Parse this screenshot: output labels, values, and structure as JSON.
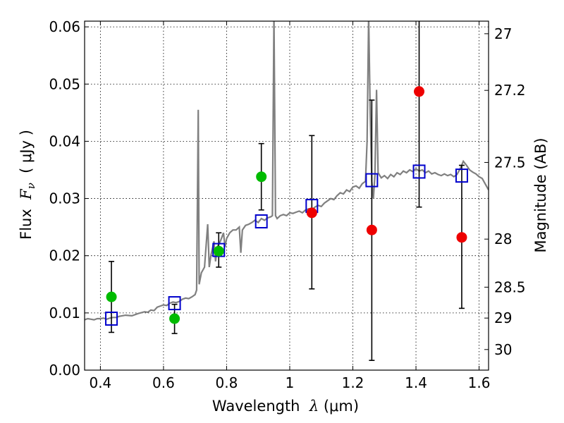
{
  "chart_data": {
    "type": "scatter",
    "xlabel": {
      "prefix": "Wavelength  ",
      "symbol": "λ",
      "suffix": " (μm)"
    },
    "ylabel": {
      "prefix": "Flux  ",
      "symbol": "F",
      "subscript": "ν",
      "suffix": "  ( μJy )"
    },
    "y2label": "Magnitude (AB)",
    "xlim": [
      0.35,
      1.63
    ],
    "ylim": [
      0.0,
      0.061
    ],
    "xticks": [
      {
        "value": 0.4,
        "label": "0.4"
      },
      {
        "value": 0.6,
        "label": "0.6"
      },
      {
        "value": 0.8,
        "label": "0.8"
      },
      {
        "value": 1.0,
        "label": "1"
      },
      {
        "value": 1.2,
        "label": "1.2"
      },
      {
        "value": 1.4,
        "label": "1.4"
      },
      {
        "value": 1.6,
        "label": "1.6"
      }
    ],
    "yticks": [
      {
        "value": 0.0,
        "label": "0.00"
      },
      {
        "value": 0.01,
        "label": "0.01"
      },
      {
        "value": 0.02,
        "label": "0.02"
      },
      {
        "value": 0.03,
        "label": "0.03"
      },
      {
        "value": 0.04,
        "label": "0.04"
      },
      {
        "value": 0.05,
        "label": "0.05"
      },
      {
        "value": 0.06,
        "label": "0.06"
      }
    ],
    "y2ticks": [
      {
        "flux": 0.0588,
        "label": "27"
      },
      {
        "flux": 0.0489,
        "label": "27.2"
      },
      {
        "flux": 0.0363,
        "label": "27.5"
      },
      {
        "flux": 0.0229,
        "label": "28"
      },
      {
        "flux": 0.0145,
        "label": "28.5"
      },
      {
        "flux": 0.0091,
        "label": "29"
      },
      {
        "flux": 0.0036,
        "label": "30"
      }
    ],
    "grid": true,
    "template_color": "#808080",
    "template": [
      [
        0.35,
        0.0088
      ],
      [
        0.36,
        0.009
      ],
      [
        0.37,
        0.0089
      ],
      [
        0.38,
        0.0088
      ],
      [
        0.39,
        0.009
      ],
      [
        0.4,
        0.009
      ],
      [
        0.41,
        0.0091
      ],
      [
        0.42,
        0.0089
      ],
      [
        0.43,
        0.0091
      ],
      [
        0.44,
        0.0092
      ],
      [
        0.45,
        0.0092
      ],
      [
        0.46,
        0.0094
      ],
      [
        0.48,
        0.0096
      ],
      [
        0.5,
        0.0095
      ],
      [
        0.52,
        0.0099
      ],
      [
        0.54,
        0.0102
      ],
      [
        0.55,
        0.0101
      ],
      [
        0.56,
        0.0105
      ],
      [
        0.57,
        0.0104
      ],
      [
        0.58,
        0.011
      ],
      [
        0.59,
        0.0112
      ],
      [
        0.6,
        0.0114
      ],
      [
        0.61,
        0.0113
      ],
      [
        0.62,
        0.0117
      ],
      [
        0.63,
        0.0119
      ],
      [
        0.64,
        0.0118
      ],
      [
        0.65,
        0.012
      ],
      [
        0.66,
        0.0124
      ],
      [
        0.67,
        0.0126
      ],
      [
        0.68,
        0.0125
      ],
      [
        0.69,
        0.0128
      ],
      [
        0.7,
        0.0132
      ],
      [
        0.705,
        0.014
      ],
      [
        0.71,
        0.0455
      ],
      [
        0.713,
        0.015
      ],
      [
        0.72,
        0.017
      ],
      [
        0.73,
        0.018
      ],
      [
        0.74,
        0.0255
      ],
      [
        0.745,
        0.018
      ],
      [
        0.75,
        0.02
      ],
      [
        0.76,
        0.0225
      ],
      [
        0.765,
        0.019
      ],
      [
        0.77,
        0.0215
      ],
      [
        0.78,
        0.0225
      ],
      [
        0.79,
        0.024
      ],
      [
        0.795,
        0.0215
      ],
      [
        0.8,
        0.023
      ],
      [
        0.81,
        0.024
      ],
      [
        0.82,
        0.0245
      ],
      [
        0.83,
        0.0245
      ],
      [
        0.84,
        0.025
      ],
      [
        0.845,
        0.0205
      ],
      [
        0.85,
        0.0245
      ],
      [
        0.86,
        0.0253
      ],
      [
        0.87,
        0.0255
      ],
      [
        0.88,
        0.0258
      ],
      [
        0.89,
        0.0262
      ],
      [
        0.9,
        0.0258
      ],
      [
        0.91,
        0.0265
      ],
      [
        0.92,
        0.0262
      ],
      [
        0.93,
        0.0266
      ],
      [
        0.94,
        0.0268
      ],
      [
        0.945,
        0.027
      ],
      [
        0.95,
        0.062
      ],
      [
        0.955,
        0.027
      ],
      [
        0.96,
        0.0265
      ],
      [
        0.97,
        0.027
      ],
      [
        0.98,
        0.0272
      ],
      [
        0.99,
        0.027
      ],
      [
        1.0,
        0.0275
      ],
      [
        1.01,
        0.0274
      ],
      [
        1.02,
        0.0276
      ],
      [
        1.03,
        0.0278
      ],
      [
        1.04,
        0.0275
      ],
      [
        1.05,
        0.028
      ],
      [
        1.06,
        0.0282
      ],
      [
        1.07,
        0.028
      ],
      [
        1.08,
        0.0285
      ],
      [
        1.09,
        0.0288
      ],
      [
        1.1,
        0.0286
      ],
      [
        1.11,
        0.0292
      ],
      [
        1.12,
        0.0296
      ],
      [
        1.13,
        0.03
      ],
      [
        1.14,
        0.0298
      ],
      [
        1.15,
        0.0305
      ],
      [
        1.16,
        0.031
      ],
      [
        1.17,
        0.0308
      ],
      [
        1.18,
        0.0315
      ],
      [
        1.19,
        0.0312
      ],
      [
        1.2,
        0.032
      ],
      [
        1.21,
        0.0322
      ],
      [
        1.22,
        0.0318
      ],
      [
        1.23,
        0.0326
      ],
      [
        1.24,
        0.033
      ],
      [
        1.245,
        0.04
      ],
      [
        1.25,
        0.062
      ],
      [
        1.255,
        0.045
      ],
      [
        1.26,
        0.033
      ],
      [
        1.265,
        0.03
      ],
      [
        1.27,
        0.034
      ],
      [
        1.275,
        0.049
      ],
      [
        1.28,
        0.0345
      ],
      [
        1.29,
        0.0336
      ],
      [
        1.3,
        0.034
      ],
      [
        1.31,
        0.0335
      ],
      [
        1.32,
        0.0342
      ],
      [
        1.33,
        0.0338
      ],
      [
        1.34,
        0.0345
      ],
      [
        1.35,
        0.0342
      ],
      [
        1.36,
        0.0348
      ],
      [
        1.37,
        0.0345
      ],
      [
        1.38,
        0.035
      ],
      [
        1.39,
        0.0347
      ],
      [
        1.4,
        0.0352
      ],
      [
        1.41,
        0.0348
      ],
      [
        1.42,
        0.035
      ],
      [
        1.43,
        0.0345
      ],
      [
        1.44,
        0.0348
      ],
      [
        1.45,
        0.0343
      ],
      [
        1.46,
        0.0345
      ],
      [
        1.47,
        0.0342
      ],
      [
        1.48,
        0.034
      ],
      [
        1.49,
        0.0343
      ],
      [
        1.5,
        0.034
      ],
      [
        1.51,
        0.0342
      ],
      [
        1.52,
        0.0338
      ],
      [
        1.53,
        0.0342
      ],
      [
        1.54,
        0.0352
      ],
      [
        1.55,
        0.0365
      ],
      [
        1.56,
        0.0358
      ],
      [
        1.57,
        0.035
      ],
      [
        1.58,
        0.0346
      ],
      [
        1.59,
        0.0343
      ],
      [
        1.6,
        0.0338
      ],
      [
        1.61,
        0.0335
      ],
      [
        1.62,
        0.0325
      ],
      [
        1.63,
        0.0315
      ]
    ],
    "model_points": {
      "color": "#0000cc",
      "points": [
        {
          "x": 0.435,
          "y": 0.009
        },
        {
          "x": 0.635,
          "y": 0.0117
        },
        {
          "x": 0.775,
          "y": 0.021
        },
        {
          "x": 0.91,
          "y": 0.026
        },
        {
          "x": 1.07,
          "y": 0.0287
        },
        {
          "x": 1.26,
          "y": 0.0332
        },
        {
          "x": 1.41,
          "y": 0.0347
        },
        {
          "x": 1.545,
          "y": 0.034
        }
      ]
    },
    "observed": [
      {
        "x": 0.435,
        "y": 0.0128,
        "err_low": 0.0066,
        "err_high": 0.019,
        "color": "#00bb00"
      },
      {
        "x": 0.635,
        "y": 0.009,
        "err_low": 0.0064,
        "err_high": 0.0115,
        "color": "#00bb00"
      },
      {
        "x": 0.775,
        "y": 0.0208,
        "err_low": 0.018,
        "err_high": 0.024,
        "color": "#00bb00"
      },
      {
        "x": 0.91,
        "y": 0.0338,
        "err_low": 0.028,
        "err_high": 0.0396,
        "color": "#00bb00"
      },
      {
        "x": 1.07,
        "y": 0.0275,
        "err_low": 0.0142,
        "err_high": 0.041,
        "color": "#ee0000"
      },
      {
        "x": 1.26,
        "y": 0.0245,
        "err_low": 0.0017,
        "err_high": 0.0472,
        "color": "#ee0000"
      },
      {
        "x": 1.41,
        "y": 0.0487,
        "err_low": 0.0285,
        "err_high": 0.062,
        "color": "#ee0000"
      },
      {
        "x": 1.545,
        "y": 0.0232,
        "err_low": 0.0108,
        "err_high": 0.0358,
        "color": "#ee0000"
      }
    ]
  }
}
